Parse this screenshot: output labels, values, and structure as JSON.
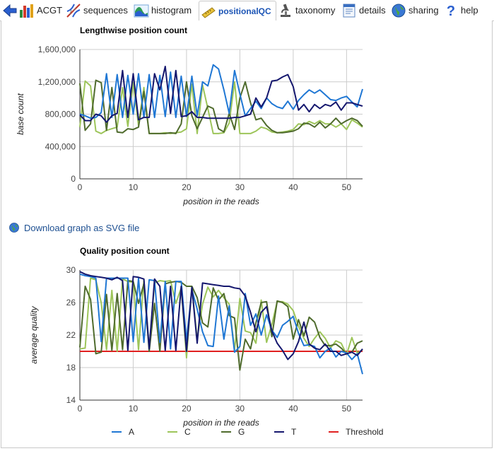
{
  "tabs": [
    {
      "name": "back",
      "label": "",
      "icon": "back-arrow-icon"
    },
    {
      "name": "acgt",
      "label": "ACGT",
      "icon": "bar-chart-icon"
    },
    {
      "name": "sequences",
      "label": "sequences",
      "icon": "dna-helix-icon"
    },
    {
      "name": "histogram",
      "label": "histogram",
      "icon": "histogram-icon"
    },
    {
      "name": "positionalqc",
      "label": "positionalQC",
      "icon": "ruler-icon",
      "active": true
    },
    {
      "name": "taxonomy",
      "label": "taxonomy",
      "icon": "microscope-icon"
    },
    {
      "name": "details",
      "label": "details",
      "icon": "document-icon"
    },
    {
      "name": "sharing",
      "label": "sharing",
      "icon": "globe-icon"
    },
    {
      "name": "help",
      "label": "help",
      "icon": "question-icon"
    }
  ],
  "download": {
    "label": "Download graph as SVG file",
    "icon": "globe-icon"
  },
  "colors": {
    "A": "#1f77d4",
    "C": "#9dc55a",
    "G": "#4f6b2d",
    "T": "#15176e",
    "Threshold": "#e02020",
    "grid": "#cccccc",
    "active_tab": "#1b54b5"
  },
  "chart_data": [
    {
      "type": "line",
      "title": "Lengthwise position count",
      "xlabel": "position in the reads",
      "ylabel": "base count",
      "xlim": [
        0,
        53
      ],
      "ylim": [
        0,
        1600000
      ],
      "xticks": [
        0,
        10,
        20,
        30,
        40,
        50
      ],
      "yticks": [
        0,
        400000,
        800000,
        1200000,
        1600000
      ],
      "ytick_labels": [
        "0",
        "400,000",
        "800,000",
        "1,200,000",
        "1,600,000"
      ],
      "grid": true,
      "series": [
        {
          "name": "A",
          "values": [
            800000,
            780000,
            750000,
            760000,
            820000,
            1300000,
            760000,
            1290000,
            760000,
            1280000,
            800000,
            1300000,
            760000,
            1290000,
            760000,
            1280000,
            770000,
            1320000,
            760000,
            1270000,
            770000,
            1270000,
            780000,
            1200000,
            1150000,
            1410000,
            1360000,
            1100000,
            810000,
            1340000,
            1050000,
            780000,
            870000,
            960000,
            870000,
            1000000,
            930000,
            890000,
            870000,
            960000,
            860000,
            970000,
            1040000,
            1100000,
            1060000,
            1100000,
            1040000,
            980000,
            970000,
            1000000,
            1020000,
            950000,
            890000,
            1110000
          ]
        },
        {
          "name": "C",
          "values": [
            640000,
            1210000,
            1150000,
            590000,
            560000,
            600000,
            620000,
            640000,
            1130000,
            650000,
            1190000,
            660000,
            1130000,
            560000,
            560000,
            560000,
            570000,
            560000,
            570000,
            580000,
            620000,
            1170000,
            560000,
            1160000,
            870000,
            560000,
            560000,
            570000,
            690000,
            1200000,
            560000,
            560000,
            560000,
            590000,
            640000,
            620000,
            580000,
            570000,
            580000,
            590000,
            610000,
            680000,
            670000,
            710000,
            680000,
            720000,
            680000,
            680000,
            640000,
            680000,
            610000,
            730000,
            690000,
            640000
          ]
        },
        {
          "name": "G",
          "values": [
            1180000,
            600000,
            680000,
            1220000,
            1190000,
            600000,
            1130000,
            580000,
            570000,
            620000,
            610000,
            640000,
            1080000,
            560000,
            560000,
            560000,
            560000,
            570000,
            560000,
            680000,
            1200000,
            780000,
            620000,
            760000,
            900000,
            870000,
            620000,
            580000,
            810000,
            610000,
            1000000,
            1200000,
            940000,
            730000,
            750000,
            660000,
            600000,
            570000,
            570000,
            580000,
            590000,
            620000,
            690000,
            680000,
            640000,
            700000,
            630000,
            680000,
            750000,
            680000,
            720000,
            750000,
            720000,
            650000
          ]
        },
        {
          "name": "T",
          "values": [
            790000,
            720000,
            720000,
            800000,
            780000,
            700000,
            780000,
            810000,
            1340000,
            760000,
            1300000,
            730000,
            760000,
            760000,
            1300000,
            1100000,
            1390000,
            810000,
            1340000,
            770000,
            780000,
            830000,
            760000,
            760000,
            750000,
            750000,
            750000,
            750000,
            750000,
            760000,
            760000,
            780000,
            800000,
            1000000,
            890000,
            1000000,
            1210000,
            1220000,
            1260000,
            1290000,
            1140000,
            850000,
            920000,
            830000,
            920000,
            870000,
            920000,
            900000,
            950000,
            850000,
            940000,
            940000,
            920000,
            900000
          ]
        }
      ]
    },
    {
      "type": "line",
      "title": "Quality position count",
      "xlabel": "position in the reads",
      "ylabel": "average quality",
      "xlim": [
        0,
        53
      ],
      "ylim": [
        14,
        30
      ],
      "xticks": [
        0,
        10,
        20,
        30,
        40,
        50
      ],
      "yticks": [
        14,
        18,
        22,
        26,
        30
      ],
      "grid": true,
      "series": [
        {
          "name": "A",
          "values": [
            29.5,
            29.3,
            29.2,
            29.0,
            21.2,
            29.0,
            29.0,
            29.0,
            29.0,
            29.0,
            21.2,
            29.0,
            21.1,
            28.8,
            28.7,
            21.1,
            28.6,
            20.3,
            28.6,
            28.6,
            21.3,
            27.6,
            25.2,
            22.4,
            20.7,
            20.6,
            26.8,
            21.5,
            25.6,
            19.9,
            20.6,
            27.1,
            23.2,
            24.6,
            22.0,
            24.5,
            22.6,
            21.7,
            23.2,
            23.7,
            24.3,
            22.2,
            20.7,
            20.8,
            20.6,
            19.2,
            20.0,
            20.4,
            19.3,
            20.0,
            19.8,
            19.0,
            19.7,
            17.2
          ]
        },
        {
          "name": "C",
          "values": [
            20.3,
            20.4,
            29.0,
            28.8,
            26.0,
            20.2,
            27.5,
            20.0,
            28.9,
            28.6,
            28.5,
            20.2,
            28.8,
            20.3,
            28.4,
            28.7,
            28.6,
            28.7,
            25.9,
            27.8,
            19.2,
            28.0,
            21.5,
            25.8,
            27.9,
            26.7,
            27.5,
            26.6,
            25.8,
            20.2,
            26.5,
            22.5,
            22.3,
            21.0,
            26.3,
            21.1,
            23.3,
            26.1,
            26.1,
            25.8,
            25.0,
            23.1,
            21.6,
            20.6,
            21.6,
            22.4,
            21.6,
            20.4,
            21.3,
            21.0,
            19.6,
            21.7,
            19.8,
            20.2
          ]
        },
        {
          "name": "G",
          "values": [
            20.5,
            28.0,
            26.4,
            19.7,
            19.9,
            27.0,
            20.1,
            27.1,
            20.2,
            28.7,
            28.6,
            25.9,
            28.3,
            20.0,
            25.9,
            20.0,
            28.3,
            28.5,
            28.6,
            28.5,
            28.0,
            28.0,
            26.6,
            23.5,
            23.0,
            27.8,
            26.3,
            27.1,
            24.4,
            24.1,
            17.7,
            21.5,
            20.3,
            23.5,
            26.0,
            26.1,
            21.8,
            26.2,
            26.0,
            25.5,
            21.5,
            23.9,
            21.9,
            24.2,
            23.6,
            21.7,
            20.7,
            20.7,
            20.9,
            20.4,
            19.7,
            19.9,
            21.0,
            21.3
          ]
        },
        {
          "name": "T",
          "values": [
            29.8,
            29.5,
            29.3,
            29.2,
            29.1,
            29.0,
            28.8,
            29.1,
            28.7,
            20.1,
            29.2,
            29.1,
            28.9,
            20.3,
            28.9,
            28.0,
            20.1,
            28.0,
            20.1,
            28.0,
            20.0,
            27.9,
            21.0,
            28.4,
            28.3,
            28.2,
            28.1,
            28.0,
            28.0,
            27.8,
            27.7,
            26.8,
            24.8,
            22.4,
            24.8,
            25.5,
            22.5,
            21.0,
            20.1,
            19.0,
            19.7,
            21.2,
            23.6,
            20.9,
            20.4,
            20.2,
            20.9,
            20.0,
            20.0,
            19.5,
            19.7,
            19.9,
            19.5,
            20.3
          ]
        },
        {
          "name": "Threshold",
          "values": [
            20,
            20,
            20,
            20,
            20,
            20,
            20,
            20,
            20,
            20,
            20,
            20,
            20,
            20,
            20,
            20,
            20,
            20,
            20,
            20,
            20,
            20,
            20,
            20,
            20,
            20,
            20,
            20,
            20,
            20,
            20,
            20,
            20,
            20,
            20,
            20,
            20,
            20,
            20,
            20,
            20,
            20,
            20,
            20,
            20,
            20,
            20,
            20,
            20,
            20,
            20,
            20,
            20,
            20
          ]
        }
      ]
    }
  ]
}
